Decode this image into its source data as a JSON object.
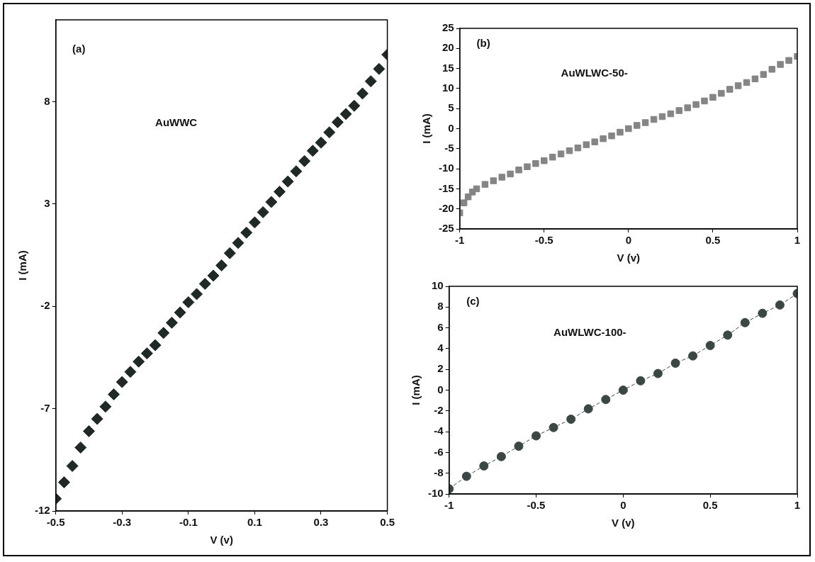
{
  "chart_data": [
    {
      "type": "scatter",
      "xlabel": "V (v)",
      "ylabel": "I (mA)",
      "annotations": [
        "(a)",
        "AuWWC"
      ],
      "marker": "diamond",
      "grid": false,
      "xlim": [
        -0.5,
        0.5
      ],
      "xticks": [
        -0.5,
        -0.3,
        -0.1,
        0.1,
        0.3,
        0.5
      ],
      "ylim": [
        -12,
        12
      ],
      "yticks": [
        -12,
        -7,
        -2,
        3,
        8
      ],
      "series": [
        {
          "color": "#1f2a28",
          "x": [
            -0.5,
            -0.475,
            -0.45,
            -0.425,
            -0.4,
            -0.375,
            -0.35,
            -0.325,
            -0.3,
            -0.275,
            -0.25,
            -0.225,
            -0.2,
            -0.175,
            -0.15,
            -0.125,
            -0.1,
            -0.075,
            -0.05,
            -0.025,
            0,
            0.025,
            0.05,
            0.075,
            0.1,
            0.125,
            0.15,
            0.175,
            0.2,
            0.225,
            0.25,
            0.275,
            0.3,
            0.325,
            0.35,
            0.375,
            0.4,
            0.425,
            0.45,
            0.475,
            0.5
          ],
          "values": [
            -11.4,
            -10.6,
            -9.8,
            -8.9,
            -8.1,
            -7.5,
            -6.9,
            -6.3,
            -5.7,
            -5.2,
            -4.7,
            -4.3,
            -3.9,
            -3.3,
            -2.8,
            -2.3,
            -1.8,
            -1.4,
            -0.9,
            -0.5,
            0.0,
            0.6,
            1.1,
            1.6,
            2.1,
            2.6,
            3.1,
            3.6,
            4.1,
            4.6,
            5.1,
            5.6,
            6.0,
            6.5,
            7.0,
            7.4,
            7.8,
            8.4,
            9.0,
            9.6,
            10.3
          ]
        }
      ]
    },
    {
      "type": "scatter",
      "xlabel": "V (v)",
      "ylabel": "I (mA)",
      "annotations": [
        "(b)",
        "AuWLWC-50-"
      ],
      "marker": "square",
      "grid": false,
      "xlim": [
        -1,
        1
      ],
      "xticks": [
        -1,
        -0.5,
        0,
        0.5,
        1
      ],
      "ylim": [
        -25,
        25
      ],
      "yticks": [
        -25,
        -20,
        -15,
        -10,
        -5,
        0,
        5,
        10,
        15,
        20,
        25
      ],
      "series": [
        {
          "color": "#858585",
          "x": [
            -1,
            -0.975,
            -0.95,
            -0.925,
            -0.9,
            -0.85,
            -0.8,
            -0.75,
            -0.7,
            -0.65,
            -0.6,
            -0.55,
            -0.5,
            -0.45,
            -0.4,
            -0.35,
            -0.3,
            -0.25,
            -0.2,
            -0.15,
            -0.1,
            -0.05,
            0,
            0.05,
            0.1,
            0.15,
            0.2,
            0.25,
            0.3,
            0.35,
            0.4,
            0.45,
            0.5,
            0.55,
            0.6,
            0.65,
            0.7,
            0.75,
            0.8,
            0.85,
            0.9,
            0.95,
            1
          ],
          "values": [
            -21,
            -18.5,
            -17,
            -15.8,
            -15,
            -13.9,
            -13,
            -12.1,
            -11.3,
            -10.3,
            -9.5,
            -8.7,
            -8,
            -7.1,
            -6.3,
            -5.5,
            -4.8,
            -4,
            -3.3,
            -2.5,
            -1.8,
            -0.9,
            0,
            0.8,
            1.5,
            2.3,
            3,
            3.7,
            4.5,
            5.2,
            6,
            6.9,
            7.8,
            8.8,
            9.8,
            10.7,
            11.5,
            12.4,
            13.5,
            14.8,
            16,
            17,
            18
          ]
        }
      ]
    },
    {
      "type": "scatter",
      "xlabel": "V (v)",
      "ylabel": "I (mA)",
      "annotations": [
        "(c)",
        "AuWLWC-100-"
      ],
      "marker": "circle",
      "line_style": "dashed",
      "grid": false,
      "xlim": [
        -1,
        1
      ],
      "xticks": [
        -1,
        -0.5,
        0,
        0.5,
        1
      ],
      "ylim": [
        -10,
        10
      ],
      "yticks": [
        -10,
        -8,
        -6,
        -4,
        -2,
        0,
        2,
        4,
        6,
        8,
        10
      ],
      "series": [
        {
          "type": "line",
          "color": "#3b4745",
          "x": [
            -1,
            -0.9,
            -0.8,
            -0.7,
            -0.6,
            -0.5,
            -0.4,
            -0.3,
            -0.2,
            -0.1,
            0,
            0.1,
            0.2,
            0.3,
            0.4,
            0.5,
            0.6,
            0.7,
            0.8,
            0.9,
            1
          ],
          "values": [
            -9.5,
            -8.3,
            -7.3,
            -6.4,
            -5.4,
            -4.4,
            -3.6,
            -2.8,
            -1.8,
            -0.9,
            0,
            0.9,
            1.6,
            2.6,
            3.3,
            4.3,
            5.3,
            6.5,
            7.4,
            8.2,
            9.3
          ]
        }
      ]
    }
  ]
}
